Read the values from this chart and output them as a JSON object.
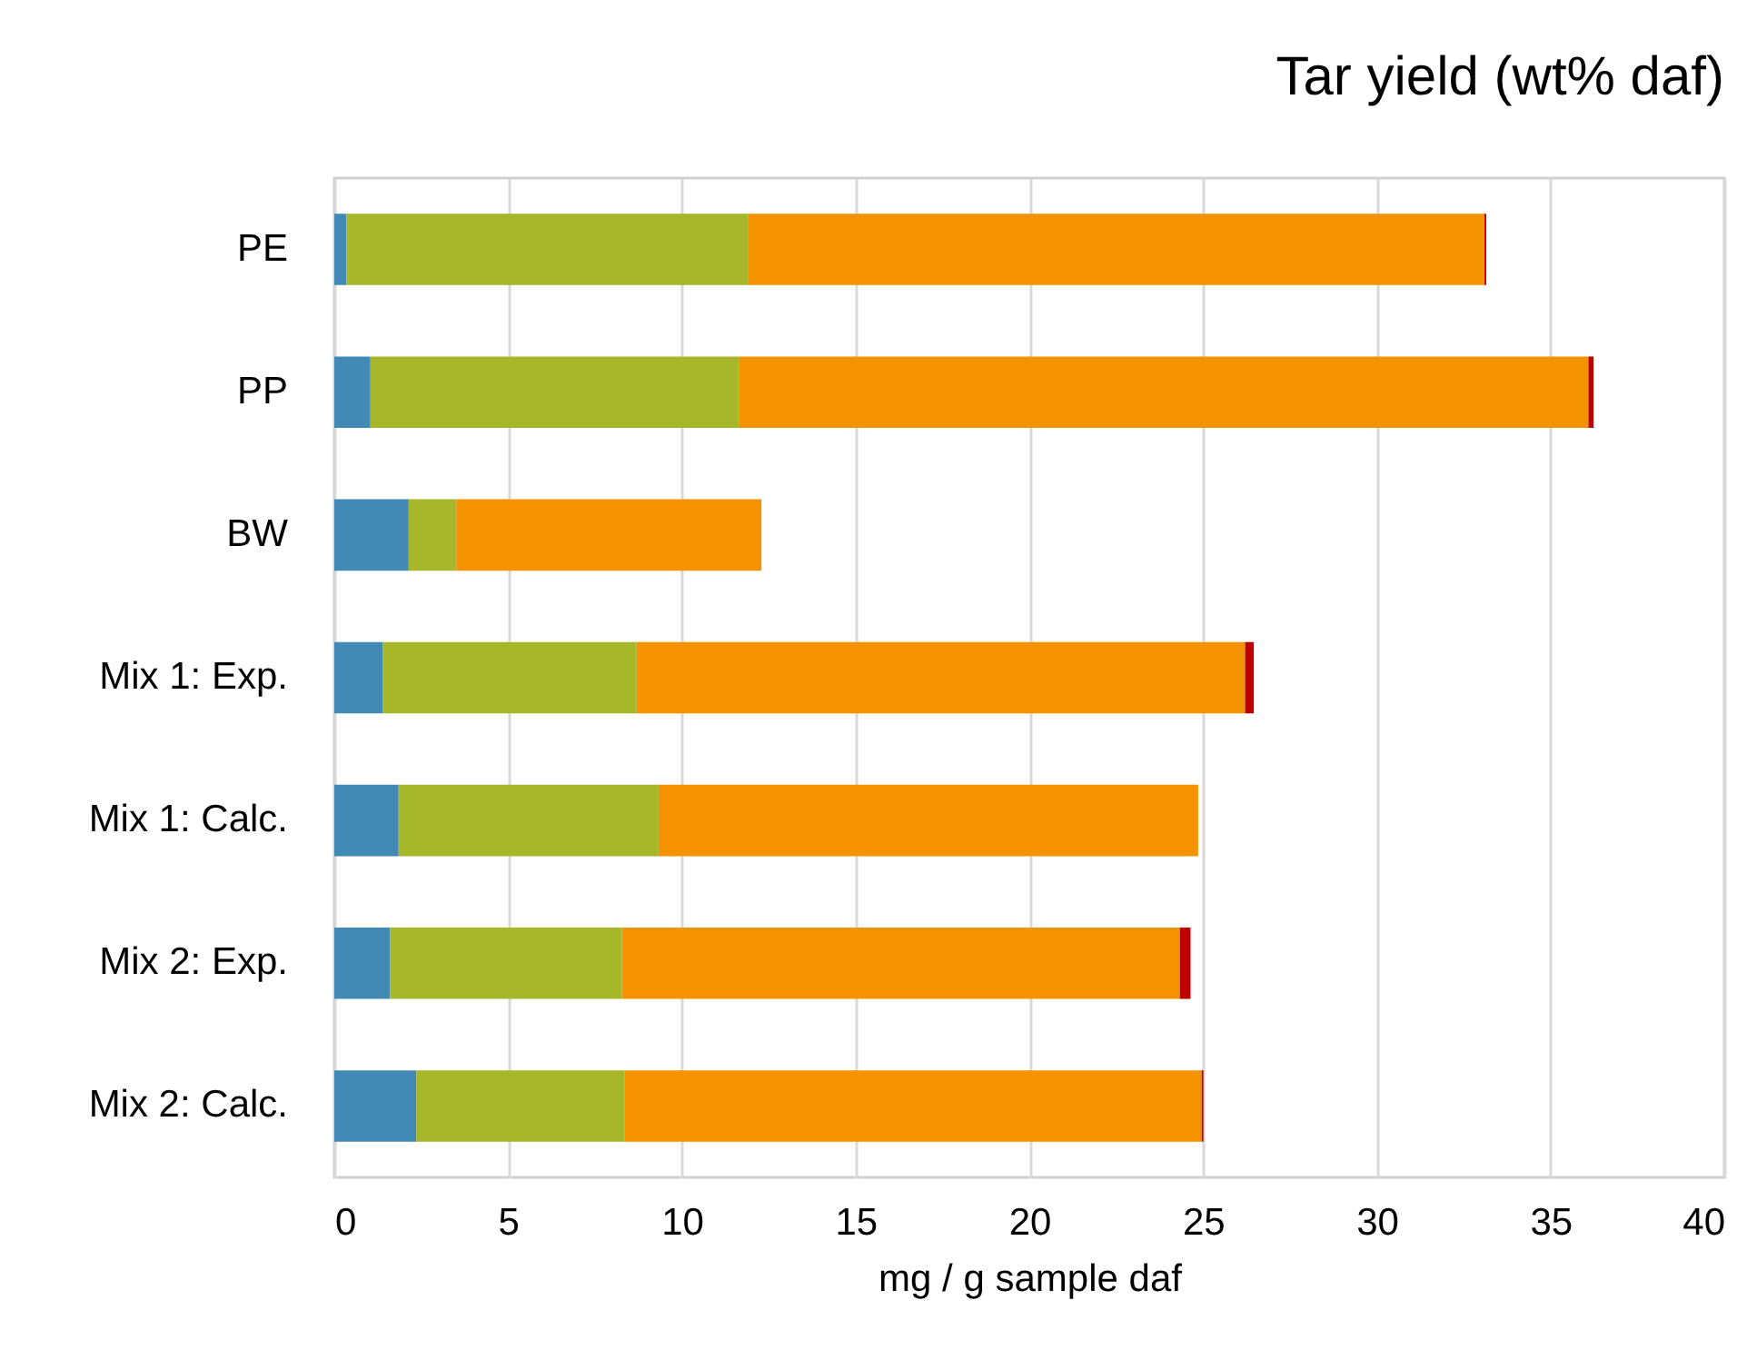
{
  "chart_data": {
    "type": "bar",
    "orientation": "horizontal",
    "stacked": true,
    "title": "Tar yield (wt% daf)",
    "xlabel": "mg / g sample daf",
    "categories": [
      "PE",
      "PP",
      "BW",
      "Mix 1: Exp.",
      "Mix 1: Calc.",
      "Mix 2: Exp.",
      "Mix 2: Calc."
    ],
    "series": [
      {
        "color": "#4389b6",
        "values": [
          0.35,
          1.04,
          2.14,
          1.4,
          1.85,
          1.6,
          2.36
        ]
      },
      {
        "color": "#a6b72a",
        "values": [
          11.55,
          10.6,
          1.37,
          7.3,
          7.48,
          6.68,
          6.0
        ]
      },
      {
        "color": "#f59200",
        "values": [
          21.2,
          24.45,
          8.78,
          17.51,
          15.53,
          16.05,
          16.6
        ]
      },
      {
        "color": "#c00000",
        "values": [
          0.05,
          0.15,
          0,
          0.25,
          0,
          0.31,
          0.05
        ]
      }
    ],
    "xlim": [
      0,
      40
    ],
    "xticks": [
      0,
      5,
      10,
      15,
      20,
      25,
      30,
      35,
      40
    ],
    "grid": "x",
    "legend": false
  }
}
